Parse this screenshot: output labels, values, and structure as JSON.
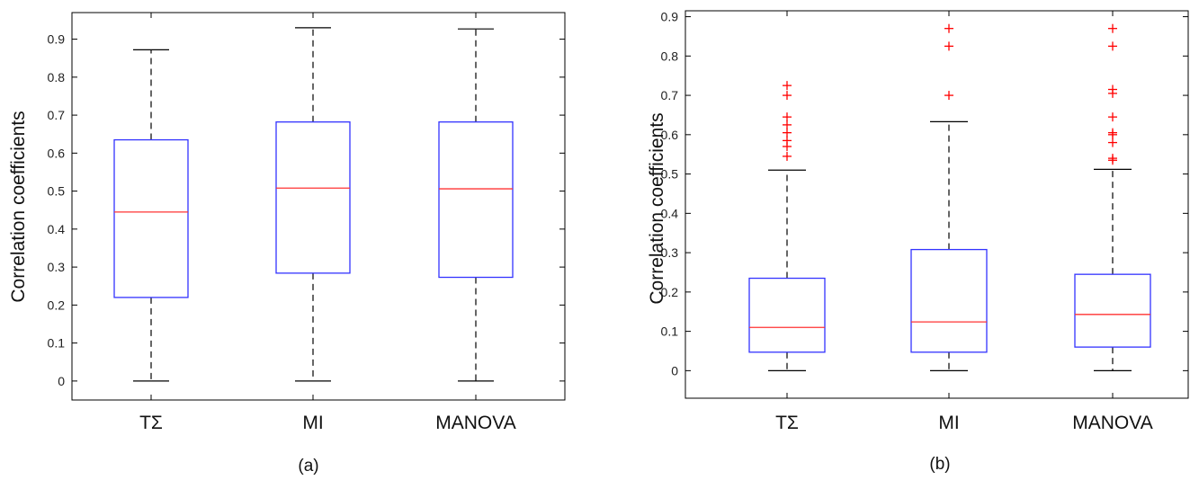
{
  "chart_data": [
    {
      "type": "box",
      "panel_label": "(a)",
      "ylabel": "Correlation coefficients",
      "ylim": [
        -0.05,
        0.97
      ],
      "yticks": [
        "0",
        "0.1",
        "0.2",
        "0.3",
        "0.4",
        "0.5",
        "0.6",
        "0.7",
        "0.8",
        "0.9"
      ],
      "categories": [
        "TΣ",
        "MI",
        "MANOVA"
      ],
      "boxes": [
        {
          "category": "TΣ",
          "whisker_low": 0.0,
          "q1": 0.22,
          "median": 0.445,
          "q3": 0.635,
          "whisker_high": 0.872,
          "outliers": []
        },
        {
          "category": "MI",
          "whisker_low": 0.0,
          "q1": 0.284,
          "median": 0.508,
          "q3": 0.682,
          "whisker_high": 0.93,
          "outliers": []
        },
        {
          "category": "MANOVA",
          "whisker_low": 0.0,
          "q1": 0.273,
          "median": 0.506,
          "q3": 0.682,
          "whisker_high": 0.927,
          "outliers": []
        }
      ],
      "grid": false,
      "colors": {
        "box": "#3333ff",
        "median": "#ff3333",
        "whisker": "#000000",
        "outlier": "#ff0000"
      }
    },
    {
      "type": "box",
      "panel_label": "(b)",
      "ylabel": "Correlation coefficients",
      "ylim": [
        -0.07,
        0.915
      ],
      "yticks": [
        "0",
        "0.1",
        "0.2",
        "0.3",
        "0.4",
        "0.5",
        "0.6",
        "0.7",
        "0.8",
        "0.9"
      ],
      "categories": [
        "TΣ",
        "MI",
        "MANOVA"
      ],
      "boxes": [
        {
          "category": "TΣ",
          "whisker_low": 0.0,
          "q1": 0.047,
          "median": 0.11,
          "q3": 0.235,
          "whisker_high": 0.51,
          "outliers": [
            0.545,
            0.57,
            0.585,
            0.605,
            0.625,
            0.645,
            0.7,
            0.725
          ]
        },
        {
          "category": "MI",
          "whisker_low": 0.0,
          "q1": 0.047,
          "median": 0.124,
          "q3": 0.308,
          "whisker_high": 0.633,
          "outliers": [
            0.7,
            0.825,
            0.87
          ]
        },
        {
          "category": "MANOVA",
          "whisker_low": 0.0,
          "q1": 0.06,
          "median": 0.143,
          "q3": 0.245,
          "whisker_high": 0.512,
          "outliers": [
            0.535,
            0.54,
            0.58,
            0.6,
            0.605,
            0.645,
            0.705,
            0.715,
            0.825,
            0.87
          ]
        }
      ],
      "grid": false,
      "colors": {
        "box": "#3333ff",
        "median": "#ff3333",
        "whisker": "#000000",
        "outlier": "#ff0000"
      }
    }
  ]
}
